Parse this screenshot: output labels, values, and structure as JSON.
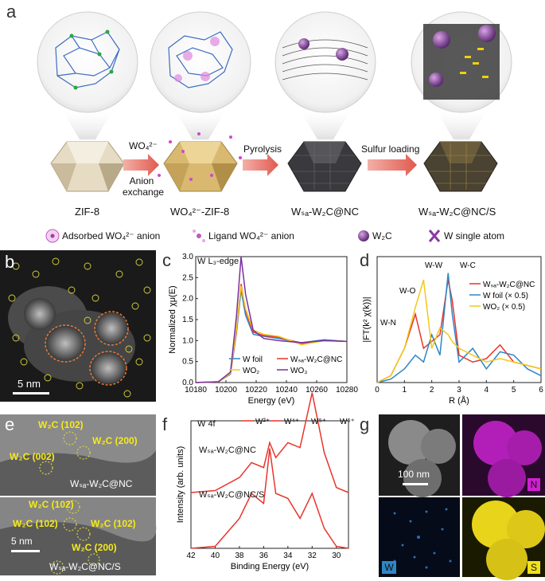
{
  "panel_a": {
    "label": "a",
    "stages": [
      {
        "name": "ZIF-8"
      },
      {
        "name": "WO₄²⁻-ZIF-8"
      },
      {
        "name": "Wₛₐ-W₂C@NC"
      },
      {
        "name": "Wₛₐ-W₂C@NC/S"
      }
    ],
    "arrows": [
      {
        "top": "WO₄²⁻",
        "bottom": "Anion exchange"
      },
      {
        "top": "Pyrolysis",
        "bottom": ""
      },
      {
        "top": "Sulfur loading",
        "bottom": ""
      }
    ],
    "legend": [
      {
        "label": "Adsorbed WO₄²⁻ anion",
        "icon": "adsorbed-anion-icon"
      },
      {
        "label": "Ligand WO₄²⁻ anion",
        "icon": "ligand-anion-icon"
      },
      {
        "label": "W₂C",
        "icon": "w2c-sphere-icon"
      },
      {
        "label": "W single atom",
        "icon": "single-atom-icon"
      }
    ]
  },
  "panel_b": {
    "label": "b",
    "scale": "5 nm"
  },
  "panel_c": {
    "label": "c",
    "edge": "W L₃-edge",
    "legend": [
      "W foil",
      "Wₛₐ-W₂C@NC",
      "WO₂",
      "WO₃"
    ]
  },
  "panel_d": {
    "label": "d",
    "peaks": [
      "W-O",
      "W-W",
      "W-C",
      "W-N"
    ],
    "legend": [
      "Wₛₐ-W₂C@NC",
      "W foil (× 0.5)",
      "WO₂ (× 0.5)"
    ]
  },
  "panel_e": {
    "label": "e",
    "top_labels": [
      "W₂C (102)",
      "W₂C (200)",
      "W₂C (002)",
      "Wₛₐ-W₂C@NC"
    ],
    "bottom_labels": [
      "W₂C (102)",
      "W₂C (102)",
      "W₂C (102)",
      "W₂C (200)",
      "Wₛₐ-W₂C@NC/S"
    ],
    "scale": "5 nm"
  },
  "panel_f": {
    "label": "f",
    "title": "W 4f",
    "legend": [
      "W²⁺",
      "W⁴⁺",
      "W⁵⁺",
      "W⁶⁺"
    ],
    "samples": [
      "Wₛₐ-W₂C@NC",
      "Wₛₐ-W₂C@NC/S"
    ]
  },
  "panel_g": {
    "label": "g",
    "scale": "100 nm",
    "maps": [
      "N",
      "W",
      "S"
    ]
  },
  "colors": {
    "red": "#e8342c",
    "blue": "#2f86c6",
    "yellow": "#f2c81a",
    "purple": "#7a2fa0",
    "orange": "#f28a1c",
    "teal": "#3bb3c6",
    "magenta": "#c21fc8",
    "arrow": "#e05a4e"
  },
  "chart_data": [
    {
      "type": "line",
      "panel": "c",
      "xlabel": "Energy (eV)",
      "ylabel": "Normalized χμ(E)",
      "xlim": [
        10180,
        10280
      ],
      "ylim": [
        0.0,
        3.0
      ],
      "xticks": [
        10180,
        10200,
        10220,
        10240,
        10260,
        10280
      ],
      "yticks": [
        0.0,
        0.5,
        1.0,
        1.5,
        2.0,
        2.5,
        3.0
      ],
      "x": [
        10180,
        10195,
        10203,
        10207,
        10210,
        10213,
        10218,
        10225,
        10235,
        10250,
        10265,
        10280
      ],
      "series": [
        {
          "name": "W foil",
          "values": [
            0.0,
            0.02,
            0.2,
            1.2,
            2.2,
            1.6,
            1.15,
            1.1,
            1.05,
            0.95,
            1.02,
            0.98
          ]
        },
        {
          "name": "Wₛₐ-W₂C@NC",
          "values": [
            0.0,
            0.02,
            0.22,
            1.25,
            2.35,
            1.7,
            1.2,
            1.12,
            1.08,
            0.93,
            1.0,
            0.98
          ]
        },
        {
          "name": "WO₂",
          "values": [
            0.0,
            0.02,
            0.22,
            1.3,
            2.3,
            1.75,
            1.25,
            1.15,
            1.1,
            0.9,
            1.0,
            0.98
          ]
        },
        {
          "name": "WO₃",
          "values": [
            0.0,
            0.02,
            0.25,
            1.6,
            3.0,
            2.1,
            1.25,
            1.05,
            1.0,
            0.95,
            1.0,
            0.98
          ]
        }
      ]
    },
    {
      "type": "line",
      "panel": "d",
      "xlabel": "R (Å)",
      "ylabel": "|FT(k² χ(k))|",
      "xlim": [
        0,
        6
      ],
      "xticks": [
        0,
        1,
        2,
        3,
        4,
        5,
        6
      ],
      "x": [
        0,
        0.5,
        1.0,
        1.4,
        1.7,
        2.0,
        2.3,
        2.6,
        2.75,
        3.0,
        3.5,
        4.0,
        4.5,
        5.0,
        5.5,
        6.0
      ],
      "series": [
        {
          "name": "Wₛₐ-W₂C@NC",
          "values": [
            0.0,
            0.1,
            0.5,
            1.0,
            0.5,
            0.6,
            0.7,
            1.5,
            1.2,
            0.4,
            0.3,
            0.35,
            0.55,
            0.3,
            0.25,
            0.2
          ]
        },
        {
          "name": "W foil (× 0.5)",
          "values": [
            0.0,
            0.05,
            0.2,
            0.4,
            0.3,
            0.7,
            0.4,
            1.6,
            1.0,
            0.3,
            0.5,
            0.2,
            0.45,
            0.4,
            0.2,
            0.1
          ]
        },
        {
          "name": "WO₂ (× 0.5)",
          "values": [
            0.0,
            0.1,
            0.5,
            1.1,
            1.5,
            0.5,
            0.8,
            0.7,
            0.6,
            0.5,
            0.4,
            0.3,
            0.35,
            0.3,
            0.25,
            0.2
          ]
        }
      ]
    },
    {
      "type": "line",
      "panel": "f",
      "xlabel": "Binding Energy (eV)",
      "ylabel": "Intensity (arb. units)",
      "xlim": [
        42,
        29
      ],
      "xticks": [
        42,
        40,
        38,
        36,
        34,
        32,
        30
      ],
      "x": [
        42,
        40,
        38,
        37,
        36,
        35.5,
        35,
        34,
        33,
        32,
        31,
        30,
        29
      ],
      "series": [
        {
          "name": "Wₛₐ-W₂C@NC",
          "values": [
            0.0,
            0.02,
            0.15,
            0.3,
            0.25,
            0.5,
            0.35,
            0.5,
            0.45,
            1.0,
            0.4,
            0.05,
            0.0
          ]
        },
        {
          "name": "Wₛₐ-W₂C@NC/S",
          "values": [
            0.0,
            0.02,
            0.3,
            0.55,
            0.45,
            1.0,
            0.55,
            0.5,
            0.3,
            0.55,
            0.2,
            0.02,
            0.0
          ]
        }
      ]
    }
  ]
}
